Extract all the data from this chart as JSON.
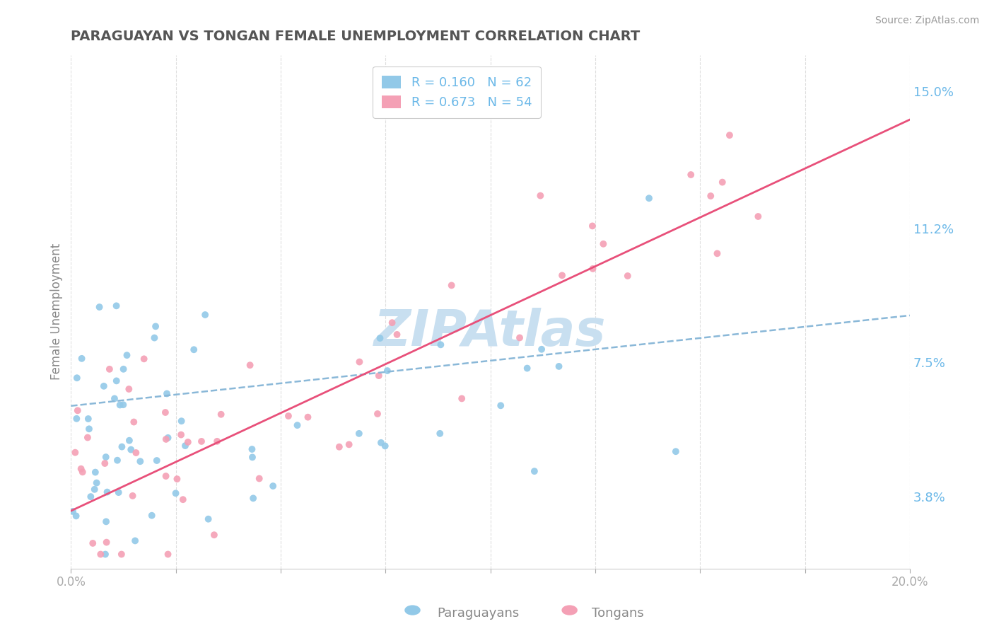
{
  "title": "PARAGUAYAN VS TONGAN FEMALE UNEMPLOYMENT CORRELATION CHART",
  "source": "Source: ZipAtlas.com",
  "ylabel": "Female Unemployment",
  "x_min": 0.0,
  "x_max": 0.2,
  "y_min": 0.018,
  "y_max": 0.16,
  "y_ticks_right": [
    0.038,
    0.075,
    0.112,
    0.15
  ],
  "y_tick_labels_right": [
    "3.8%",
    "7.5%",
    "11.2%",
    "15.0%"
  ],
  "paraguayan_color": "#92C9E8",
  "tongan_color": "#F4A0B5",
  "paraguayan_line_color": "#8AB8D8",
  "tongan_line_color": "#E8507A",
  "R_paraguayan": 0.16,
  "N_paraguayan": 62,
  "R_tongan": 0.673,
  "N_tongan": 54,
  "watermark": "ZIPAtlas",
  "watermark_color": "#C8DFF0",
  "background_color": "#FFFFFF",
  "grid_color": "#DEDEDE",
  "title_color": "#555555",
  "axis_label_color": "#6BB8E8",
  "tick_label_color": "#6BB8E8",
  "bottom_label_color": "#888888"
}
